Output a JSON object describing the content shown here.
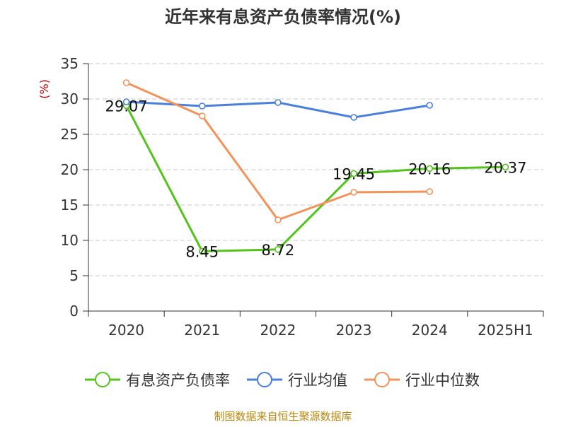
{
  "title": "近年来有息资产负债率情况(%)",
  "source": "制图数据来自恒生聚源数据库",
  "colors": {
    "有息资产负债率": "#52c41a",
    "行业均值": "#4a7fdc",
    "行业中位数": "#f4925a",
    "axis": "#333333",
    "grid": "#c8c8c8",
    "unit": "#cc0000",
    "source": "#b8860b"
  },
  "chart_data": {
    "type": "line",
    "title": "近年来有息资产负债率情况(%)",
    "ylabel": "(%)",
    "xlabel": "",
    "categories": [
      "2020",
      "2021",
      "2022",
      "2023",
      "2024",
      "2025H1"
    ],
    "ylim": [
      0,
      35
    ],
    "yticks": [
      0,
      5,
      10,
      15,
      20,
      25,
      30,
      35
    ],
    "grid": true,
    "legend_position": "bottom",
    "series": [
      {
        "name": "有息资产负债率",
        "values": [
          29.07,
          8.45,
          8.72,
          19.45,
          20.16,
          20.37
        ],
        "labels": [
          "29.07",
          "8.45",
          "8.72",
          "19.45",
          "20.16",
          "20.37"
        ]
      },
      {
        "name": "行业均值",
        "values": [
          29.6,
          29.0,
          29.5,
          27.4,
          29.1,
          null
        ]
      },
      {
        "name": "行业中位数",
        "values": [
          32.3,
          27.6,
          12.9,
          16.8,
          16.9,
          null
        ]
      }
    ]
  }
}
